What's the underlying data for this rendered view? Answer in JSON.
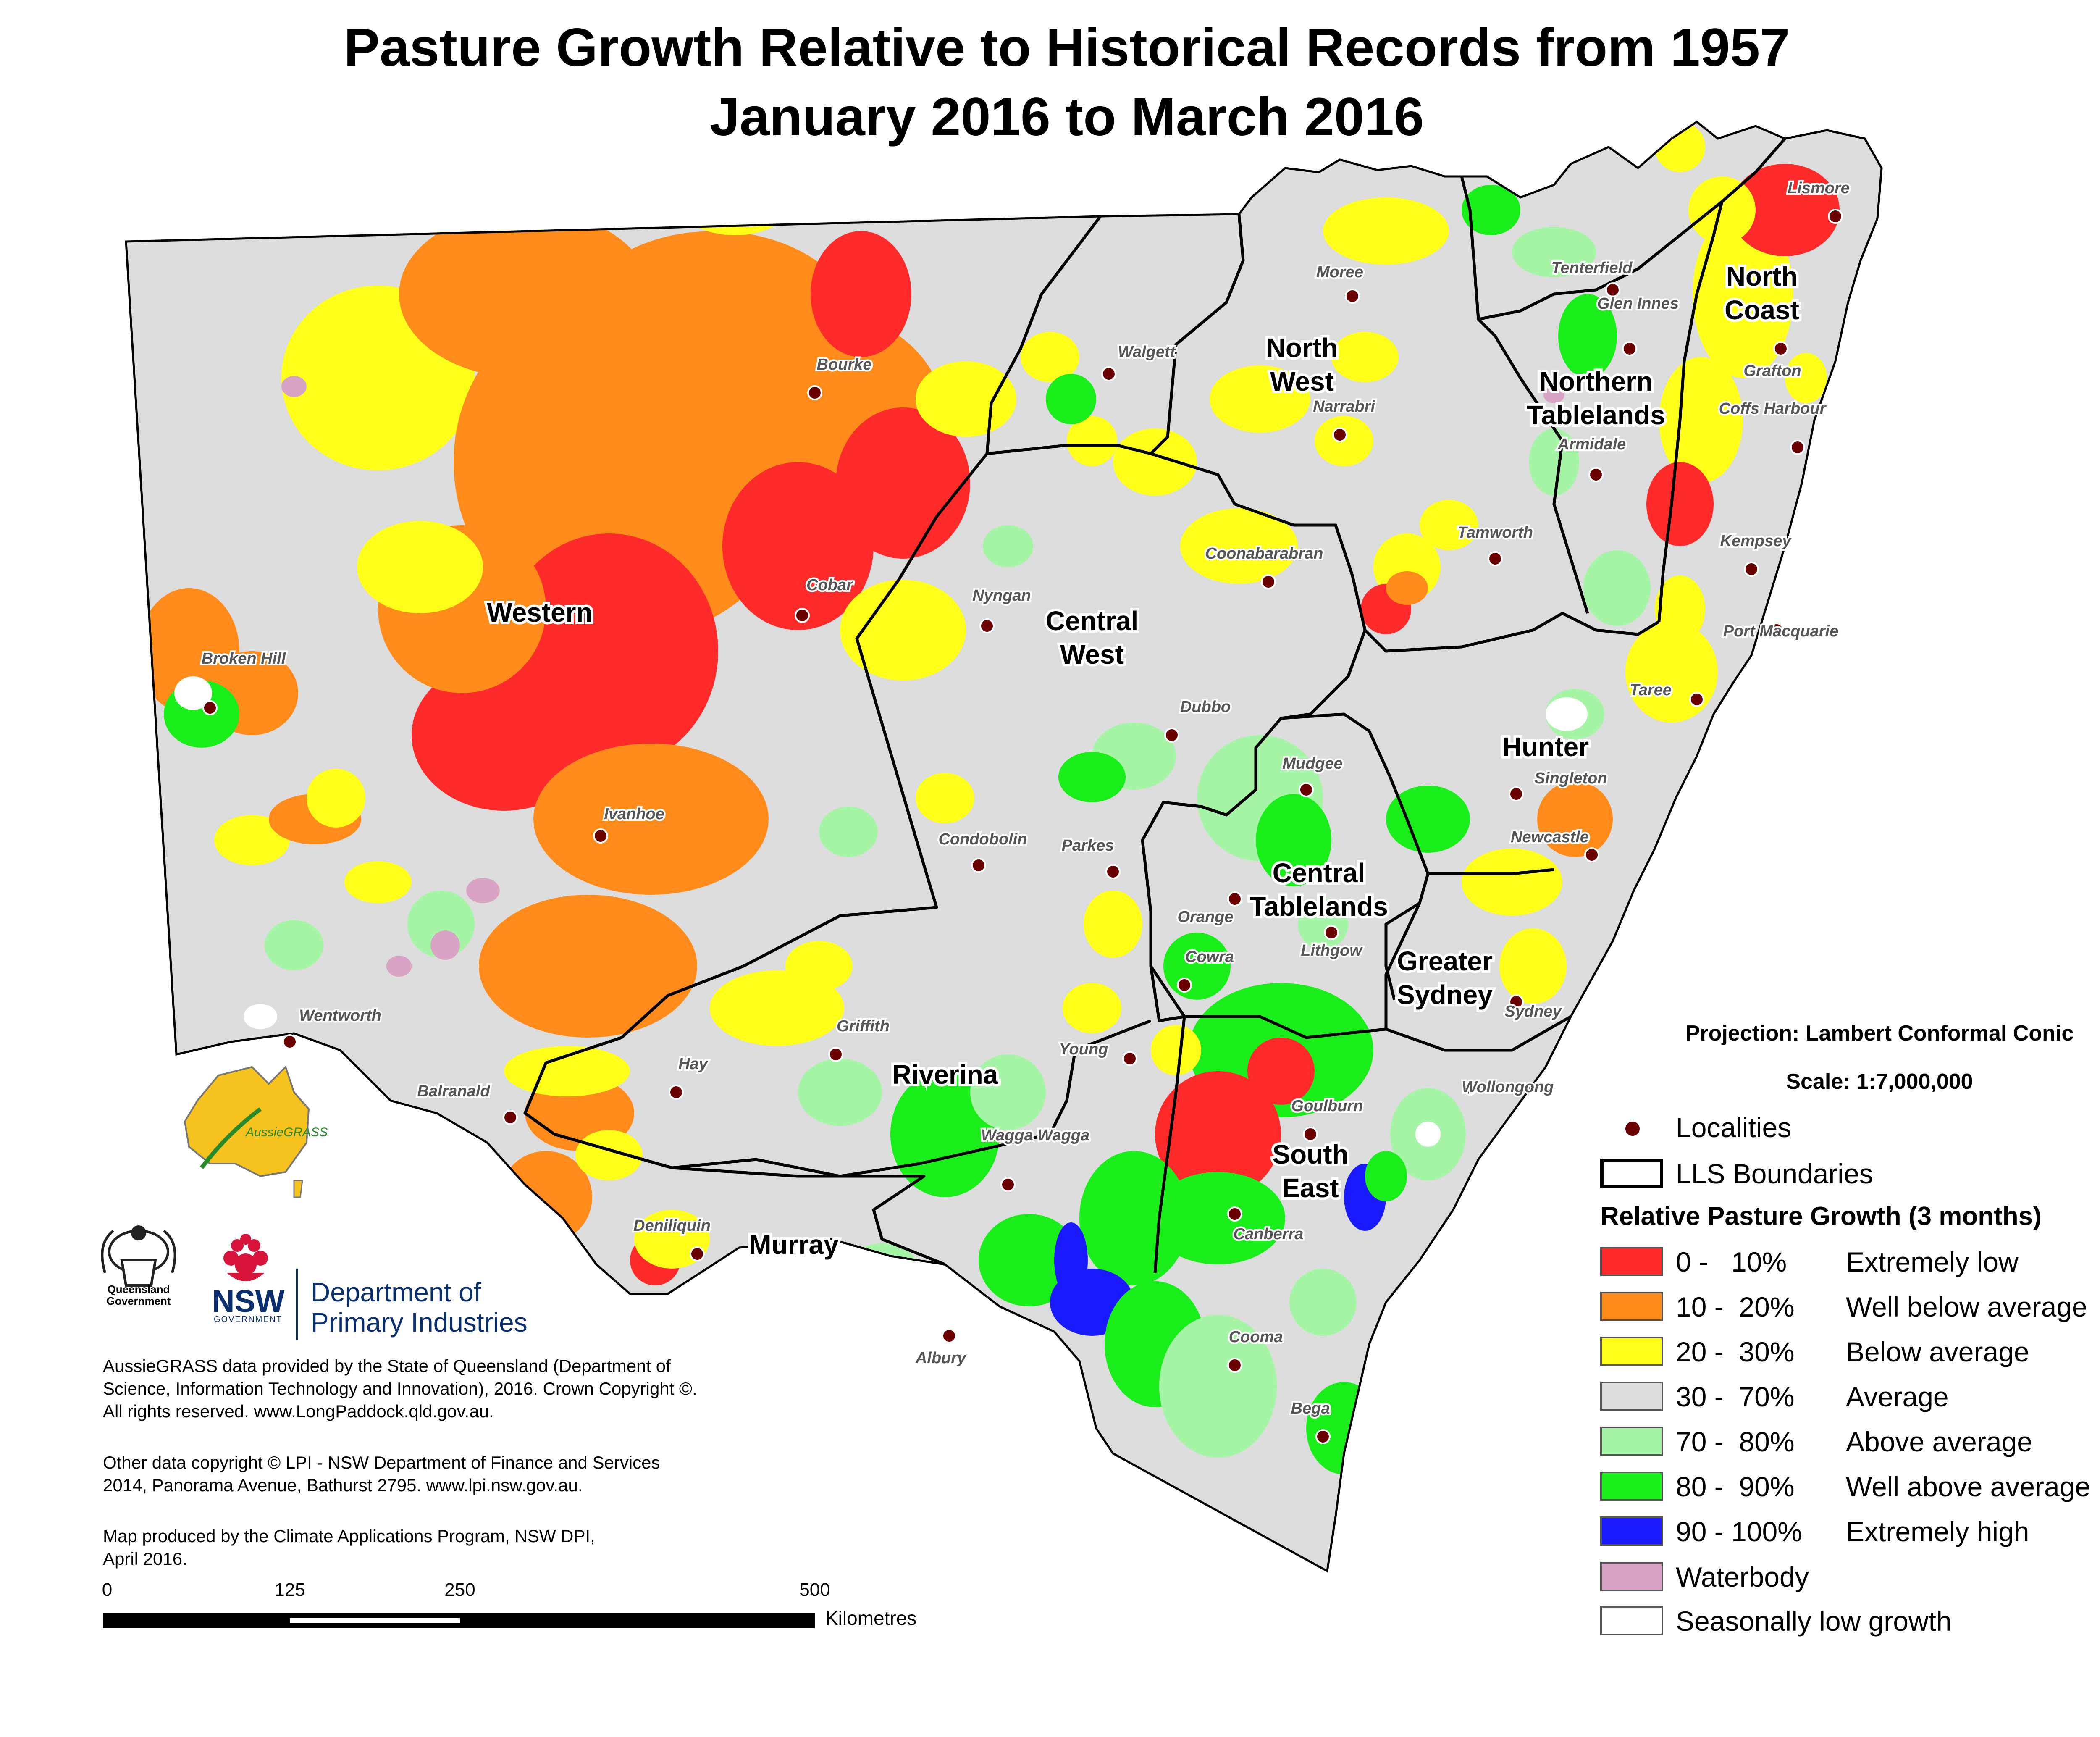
{
  "title": "Pasture Growth Relative to Historical Records from 1957",
  "subtitle": "January 2016 to March 2016",
  "projection": "Projection: Lambert Conformal Conic",
  "scale": "Scale: 1:7,000,000",
  "legend": {
    "localities": "Localities",
    "boundaries": "LLS Boundaries",
    "heading": "Relative Pasture Growth (3 months)",
    "classes": [
      {
        "range": "0 -   10%",
        "label": "Extremely low",
        "color": "#ff2a2a"
      },
      {
        "range": "10 -  20%",
        "label": "Well below average",
        "color": "#ff8c1a"
      },
      {
        "range": "20 -  30%",
        "label": "Below average",
        "color": "#ffff1a"
      },
      {
        "range": "30 -  70%",
        "label": "Average",
        "color": "#dcdcdc"
      },
      {
        "range": "70 -  80%",
        "label": "Above average",
        "color": "#a6f5a6"
      },
      {
        "range": "80 -  90%",
        "label": "Well above average",
        "color": "#1aee1a"
      },
      {
        "range": "90 - 100%",
        "label": "Extremely high",
        "color": "#1a1aff"
      }
    ],
    "waterbody": {
      "label": "Waterbody",
      "color": "#d9a3c6"
    },
    "seasonal": {
      "label": "Seasonally low growth",
      "color": "#ffffff"
    }
  },
  "regions": [
    {
      "lines": [
        "Western"
      ]
    },
    {
      "lines": [
        "North",
        "West"
      ]
    },
    {
      "lines": [
        "Northern",
        "Tablelands"
      ]
    },
    {
      "lines": [
        "North",
        "Coast"
      ]
    },
    {
      "lines": [
        "Central",
        "West"
      ]
    },
    {
      "lines": [
        "Hunter"
      ]
    },
    {
      "lines": [
        "Central",
        "Tablelands"
      ]
    },
    {
      "lines": [
        "Greater",
        "Sydney"
      ]
    },
    {
      "lines": [
        "Riverina"
      ]
    },
    {
      "lines": [
        "Murray"
      ]
    },
    {
      "lines": [
        "South",
        "East"
      ]
    }
  ],
  "localities": [
    {
      "name": "Lismore"
    },
    {
      "name": "Tenterfield"
    },
    {
      "name": "Moree"
    },
    {
      "name": "Glen Innes"
    },
    {
      "name": "Grafton"
    },
    {
      "name": "Walgett"
    },
    {
      "name": "Bourke"
    },
    {
      "name": "Narrabri"
    },
    {
      "name": "Coffs Harbour"
    },
    {
      "name": "Armidale"
    },
    {
      "name": "Tamworth"
    },
    {
      "name": "Kempsey"
    },
    {
      "name": "Coonabarabran"
    },
    {
      "name": "Cobar"
    },
    {
      "name": "Nyngan"
    },
    {
      "name": "Port Macquarie"
    },
    {
      "name": "Broken Hill"
    },
    {
      "name": "Taree"
    },
    {
      "name": "Dubbo"
    },
    {
      "name": "Mudgee"
    },
    {
      "name": "Singleton"
    },
    {
      "name": "Ivanhoe"
    },
    {
      "name": "Condobolin"
    },
    {
      "name": "Parkes"
    },
    {
      "name": "Newcastle"
    },
    {
      "name": "Orange"
    },
    {
      "name": "Lithgow"
    },
    {
      "name": "Cowra"
    },
    {
      "name": "Sydney"
    },
    {
      "name": "Wentworth"
    },
    {
      "name": "Griffith"
    },
    {
      "name": "Young"
    },
    {
      "name": "Hay"
    },
    {
      "name": "Wollongong"
    },
    {
      "name": "Balranald"
    },
    {
      "name": "Goulburn"
    },
    {
      "name": "Wagga Wagga"
    },
    {
      "name": "Canberra"
    },
    {
      "name": "Deniliquin"
    },
    {
      "name": "Albury"
    },
    {
      "name": "Cooma"
    },
    {
      "name": "Bega"
    }
  ],
  "credits": {
    "line1": "AussieGRASS data provided by the State of Queensland (Department of",
    "line2": "Science, Information Technology and Innovation), 2016. Crown Copyright ©.",
    "line3": "All rights reserved. www.LongPaddock.qld.gov.au.",
    "line4": "Other data copyright © LPI - NSW Department of Finance and Services",
    "line5": "2014, Panorama Avenue, Bathurst 2795. www.lpi.nsw.gov.au.",
    "line6": "Map produced by the Climate Applications Program, NSW DPI,",
    "line7": "April 2016."
  },
  "scalebar": {
    "ticks": [
      "0",
      "125",
      "250",
      "500"
    ],
    "unit": "Kilometres"
  },
  "logos": {
    "aussiegrass": "AussieGRASS",
    "qld_line1": "Queensland",
    "qld_line2": "Government",
    "nsw": "NSW",
    "nsw_gov": "GOVERNMENT",
    "dpi_line1": "Department of",
    "dpi_line2": "Primary Industries"
  }
}
